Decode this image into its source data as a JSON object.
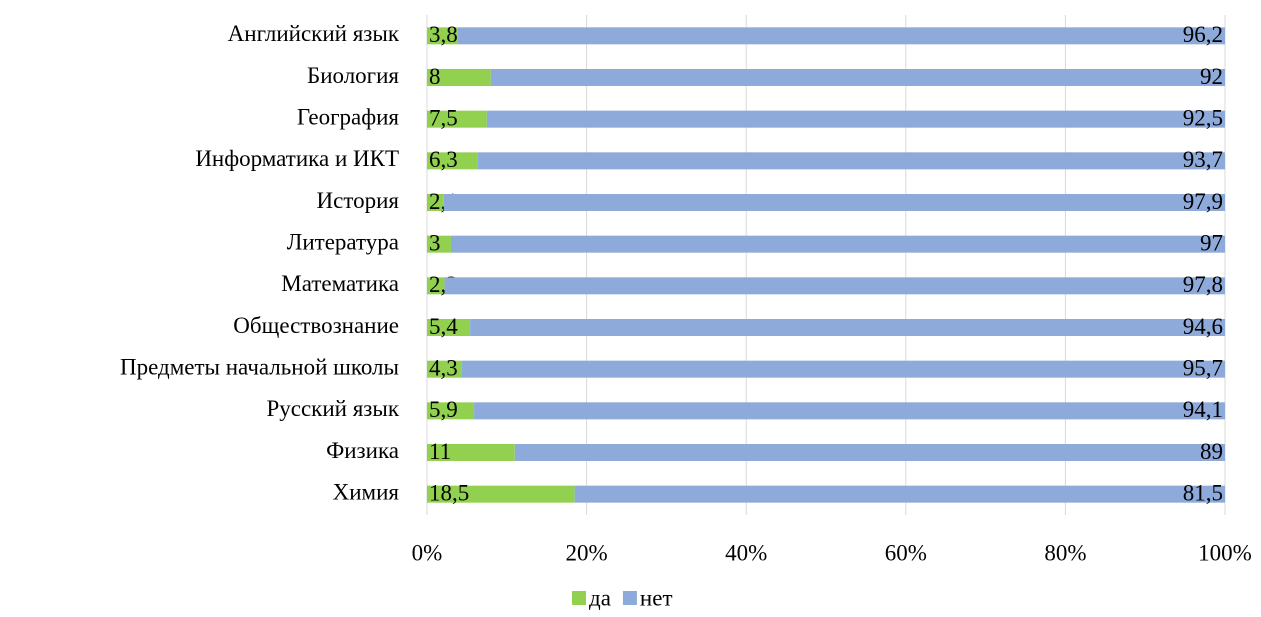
{
  "chart_data": {
    "type": "bar",
    "orientation": "horizontal",
    "stacked": true,
    "categories": [
      "Английский язык",
      "Биология",
      "География",
      "Информатика и ИКТ",
      "История",
      "Литература",
      "Математика",
      "Обществознание",
      "Предметы начальной школы",
      "Русский язык",
      "Физика",
      "Химия"
    ],
    "series": [
      {
        "name": "да",
        "color": "#92d050",
        "values": [
          3.8,
          8,
          7.5,
          6.3,
          2.1,
          3,
          2.2,
          5.4,
          4.3,
          5.9,
          11,
          18.5
        ],
        "value_labels": [
          "3,8",
          "8",
          "7,5",
          "6,3",
          "2,1",
          "3",
          "2,2",
          "5,4",
          "4,3",
          "5,9",
          "11",
          "18,5"
        ]
      },
      {
        "name": "нет",
        "color": "#8eaadb",
        "values": [
          96.2,
          92,
          92.5,
          93.7,
          97.9,
          97,
          97.8,
          94.6,
          95.7,
          94.1,
          89,
          81.5
        ],
        "value_labels": [
          "96,2",
          "92",
          "92,5",
          "93,7",
          "97,9",
          "97",
          "97,8",
          "94,6",
          "95,7",
          "94,1",
          "89",
          "81,5"
        ]
      }
    ],
    "xlim": [
      0,
      100
    ],
    "xticks": [
      {
        "value": 0,
        "label": "0%"
      },
      {
        "value": 20,
        "label": "20%"
      },
      {
        "value": 40,
        "label": "40%"
      },
      {
        "value": 60,
        "label": "60%"
      },
      {
        "value": 80,
        "label": "80%"
      },
      {
        "value": 100,
        "label": "100%"
      }
    ],
    "grid": true,
    "legend": "bottom"
  }
}
